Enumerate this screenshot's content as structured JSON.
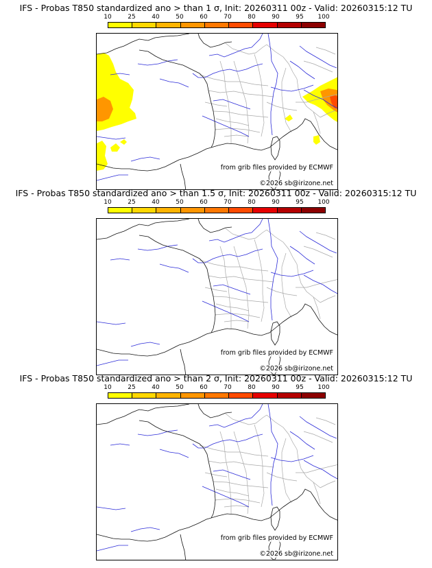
{
  "colorbar": {
    "ticks": [
      "10",
      "25",
      "40",
      "50",
      "60",
      "70",
      "80",
      "90",
      "95",
      "100"
    ],
    "colors": [
      "#ffff00",
      "#ffd800",
      "#ffb400",
      "#ff9600",
      "#ff7800",
      "#ff4b00",
      "#e60000",
      "#b40000",
      "#8c0000",
      "#5a0000"
    ]
  },
  "panels": [
    {
      "title": "IFS - Probas T850  standardized ano > than 1 σ, Init: 20260311 00z - Valid: 20260315:12 TU",
      "source": "from grib files provided by ECMWF",
      "copyright": "©2026 sb@irizone.net",
      "has_probability_areas": true
    },
    {
      "title": "IFS - Probas T850  standardized ano > than 1.5 σ, Init: 20260311 00z - Valid: 20260315:12 TU",
      "source": "from grib files provided by ECMWF",
      "copyright": "©2026 sb@irizone.net",
      "has_probability_areas": false
    },
    {
      "title": "IFS - Probas T850  standardized ano > than 2 σ, Init: 20260311 00z - Valid: 20260315:12 TU",
      "source": "from grib files provided by ECMWF",
      "copyright": "©2026 sb@irizone.net",
      "has_probability_areas": false
    }
  ]
}
